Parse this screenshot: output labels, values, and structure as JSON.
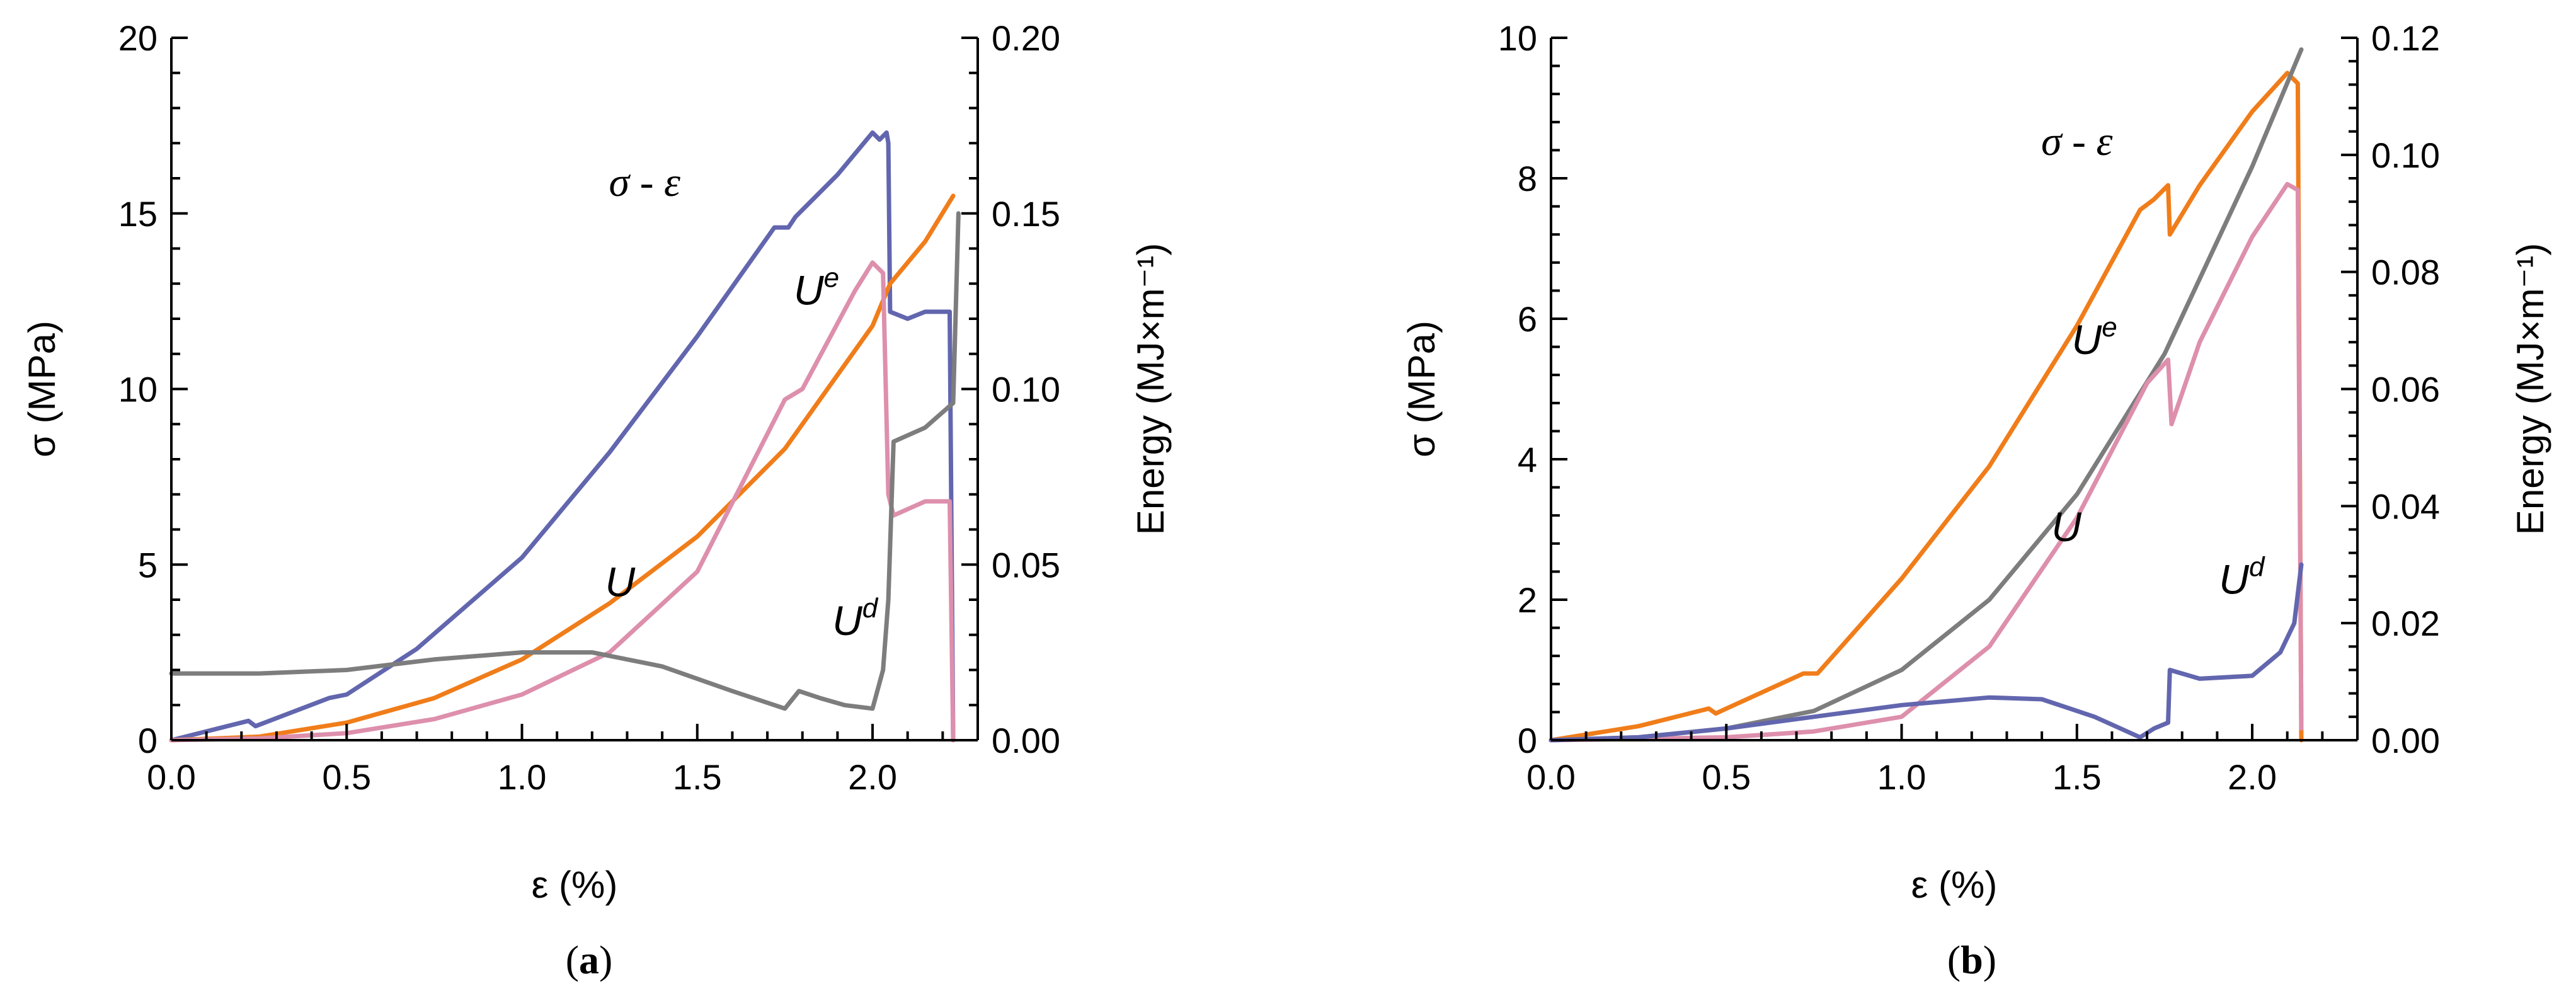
{
  "chart_data": [
    {
      "type": "line",
      "panel_label": "a",
      "xlabel": "ε (%)",
      "ylabel": "σ (MPa)",
      "y2label": "Energy (MJ×m⁻¹)",
      "xlim": [
        0,
        2.3
      ],
      "ylim": [
        0,
        20
      ],
      "y2lim": [
        0,
        0.2
      ],
      "xticks": [
        "0.0",
        "0.5",
        "1.0",
        "1.5",
        "2.0"
      ],
      "yticks": [
        "0",
        "5",
        "10",
        "15",
        "20"
      ],
      "y2ticks": [
        "0.00",
        "0.05",
        "0.10",
        "0.15",
        "0.20"
      ],
      "series": [
        {
          "name": "σ - ε",
          "axis": "left",
          "color": "#6266ae",
          "points": [
            [
              0.0,
              0.0
            ],
            [
              0.22,
              0.55
            ],
            [
              0.24,
              0.4
            ],
            [
              0.45,
              1.2
            ],
            [
              0.5,
              1.3
            ],
            [
              0.7,
              2.6
            ],
            [
              1.0,
              5.2
            ],
            [
              1.25,
              8.2
            ],
            [
              1.5,
              11.5
            ],
            [
              1.72,
              14.6
            ],
            [
              1.76,
              14.6
            ],
            [
              1.78,
              14.9
            ],
            [
              1.9,
              16.1
            ],
            [
              2.0,
              17.3
            ],
            [
              2.02,
              17.1
            ],
            [
              2.04,
              17.3
            ],
            [
              2.045,
              17.0
            ],
            [
              2.05,
              12.2
            ],
            [
              2.1,
              12.0
            ],
            [
              2.15,
              12.2
            ],
            [
              2.22,
              12.2
            ],
            [
              2.23,
              0.0
            ]
          ]
        },
        {
          "name": "U",
          "axis": "right",
          "color": "#f07d1a",
          "points": [
            [
              0.0,
              0.0
            ],
            [
              0.25,
              0.001
            ],
            [
              0.5,
              0.005
            ],
            [
              0.75,
              0.012
            ],
            [
              1.0,
              0.023
            ],
            [
              1.25,
              0.039
            ],
            [
              1.5,
              0.058
            ],
            [
              1.75,
              0.083
            ],
            [
              2.0,
              0.118
            ],
            [
              2.05,
              0.13
            ],
            [
              2.15,
              0.142
            ],
            [
              2.23,
              0.155
            ]
          ]
        },
        {
          "name": "Ue",
          "axis": "right",
          "color": "#dd8fac",
          "points": [
            [
              0.0,
              0.0
            ],
            [
              0.25,
              0.0005
            ],
            [
              0.5,
              0.002
            ],
            [
              0.75,
              0.006
            ],
            [
              1.0,
              0.013
            ],
            [
              1.25,
              0.025
            ],
            [
              1.5,
              0.048
            ],
            [
              1.75,
              0.097
            ],
            [
              1.8,
              0.1
            ],
            [
              1.95,
              0.128
            ],
            [
              2.0,
              0.136
            ],
            [
              2.03,
              0.133
            ],
            [
              2.045,
              0.07
            ],
            [
              2.06,
              0.064
            ],
            [
              2.15,
              0.068
            ],
            [
              2.22,
              0.068
            ],
            [
              2.23,
              0.0
            ]
          ]
        },
        {
          "name": "Ud",
          "axis": "right",
          "color": "#7d7d7d",
          "points": [
            [
              0.0,
              0.019
            ],
            [
              0.25,
              0.019
            ],
            [
              0.5,
              0.02
            ],
            [
              0.75,
              0.023
            ],
            [
              1.0,
              0.025
            ],
            [
              1.2,
              0.025
            ],
            [
              1.4,
              0.021
            ],
            [
              1.6,
              0.014
            ],
            [
              1.75,
              0.009
            ],
            [
              1.79,
              0.014
            ],
            [
              1.85,
              0.012
            ],
            [
              1.92,
              0.01
            ],
            [
              2.0,
              0.009
            ],
            [
              2.03,
              0.02
            ],
            [
              2.045,
              0.04
            ],
            [
              2.06,
              0.085
            ],
            [
              2.15,
              0.089
            ],
            [
              2.23,
              0.096
            ],
            [
              2.245,
              0.15
            ]
          ]
        }
      ],
      "annotations": [
        {
          "text": "σ - ε",
          "x": 1.35,
          "y2": 0.155,
          "series": "σ - ε"
        },
        {
          "text": "U",
          "sup": "e",
          "x": 1.84,
          "y2": 0.124,
          "series": "Ue"
        },
        {
          "text": "U",
          "sup": "",
          "x": 1.28,
          "y2": 0.041,
          "series": "U"
        },
        {
          "text": "U",
          "sup": "d",
          "x": 1.95,
          "y2": 0.03,
          "series": "Ud"
        }
      ]
    },
    {
      "type": "line",
      "panel_label": "b",
      "xlabel": "ε (%)",
      "ylabel": "σ (MPa)",
      "y2label": "Energy (MJ×m⁻¹)",
      "xlim": [
        0,
        2.3
      ],
      "ylim": [
        0,
        10
      ],
      "y2lim": [
        0,
        0.12
      ],
      "xticks": [
        "0.0",
        "0.5",
        "1.0",
        "1.5",
        "2.0"
      ],
      "yticks": [
        "0",
        "2",
        "4",
        "6",
        "8",
        "10"
      ],
      "y2ticks": [
        "0.00",
        "0.02",
        "0.04",
        "0.06",
        "0.08",
        "0.10",
        "0.12"
      ],
      "series": [
        {
          "name": "σ - ε",
          "axis": "left",
          "color": "#f07d1a",
          "points": [
            [
              0.0,
              0.0
            ],
            [
              0.25,
              0.2
            ],
            [
              0.45,
              0.45
            ],
            [
              0.47,
              0.38
            ],
            [
              0.5,
              0.45
            ],
            [
              0.72,
              0.95
            ],
            [
              0.76,
              0.95
            ],
            [
              1.0,
              2.3
            ],
            [
              1.25,
              3.9
            ],
            [
              1.5,
              5.9
            ],
            [
              1.68,
              7.55
            ],
            [
              1.72,
              7.7
            ],
            [
              1.76,
              7.9
            ],
            [
              1.765,
              7.2
            ],
            [
              1.85,
              7.9
            ],
            [
              2.0,
              8.95
            ],
            [
              2.1,
              9.5
            ],
            [
              2.13,
              9.35
            ],
            [
              2.14,
              0.0
            ]
          ]
        },
        {
          "name": "U",
          "axis": "right",
          "color": "#7d7d7d",
          "points": [
            [
              0.0,
              0.0
            ],
            [
              0.25,
              0.0005
            ],
            [
              0.5,
              0.002
            ],
            [
              0.75,
              0.005
            ],
            [
              1.0,
              0.012
            ],
            [
              1.25,
              0.024
            ],
            [
              1.5,
              0.042
            ],
            [
              1.75,
              0.066
            ],
            [
              2.0,
              0.098
            ],
            [
              2.14,
              0.118
            ]
          ]
        },
        {
          "name": "Ue",
          "axis": "right",
          "color": "#dd8fac",
          "points": [
            [
              0.0,
              0.0
            ],
            [
              0.5,
              0.0005
            ],
            [
              0.75,
              0.0015
            ],
            [
              1.0,
              0.004
            ],
            [
              1.25,
              0.016
            ],
            [
              1.5,
              0.038
            ],
            [
              1.7,
              0.061
            ],
            [
              1.76,
              0.065
            ],
            [
              1.77,
              0.054
            ],
            [
              1.85,
              0.068
            ],
            [
              2.0,
              0.086
            ],
            [
              2.1,
              0.095
            ],
            [
              2.13,
              0.094
            ],
            [
              2.14,
              0.002
            ]
          ]
        },
        {
          "name": "Ud",
          "axis": "right",
          "color": "#6266ae",
          "points": [
            [
              0.0,
              0.0
            ],
            [
              0.25,
              0.0005
            ],
            [
              0.5,
              0.002
            ],
            [
              0.75,
              0.004
            ],
            [
              1.0,
              0.006
            ],
            [
              1.25,
              0.0073
            ],
            [
              1.4,
              0.007
            ],
            [
              1.55,
              0.004
            ],
            [
              1.68,
              0.0005
            ],
            [
              1.72,
              0.002
            ],
            [
              1.76,
              0.003
            ],
            [
              1.765,
              0.012
            ],
            [
              1.85,
              0.0105
            ],
            [
              2.0,
              0.011
            ],
            [
              2.08,
              0.015
            ],
            [
              2.12,
              0.02
            ],
            [
              2.14,
              0.03
            ]
          ]
        }
      ],
      "annotations": [
        {
          "text": "σ - ε",
          "x": 1.5,
          "y2": 0.1,
          "series": "σ - ε"
        },
        {
          "text": "U",
          "sup": "e",
          "x": 1.55,
          "y2": 0.066,
          "series": "Ue"
        },
        {
          "text": "U",
          "sup": "",
          "x": 1.47,
          "y2": 0.034,
          "series": "U"
        },
        {
          "text": "U",
          "sup": "d",
          "x": 1.97,
          "y2": 0.025,
          "series": "Ud"
        }
      ]
    }
  ]
}
